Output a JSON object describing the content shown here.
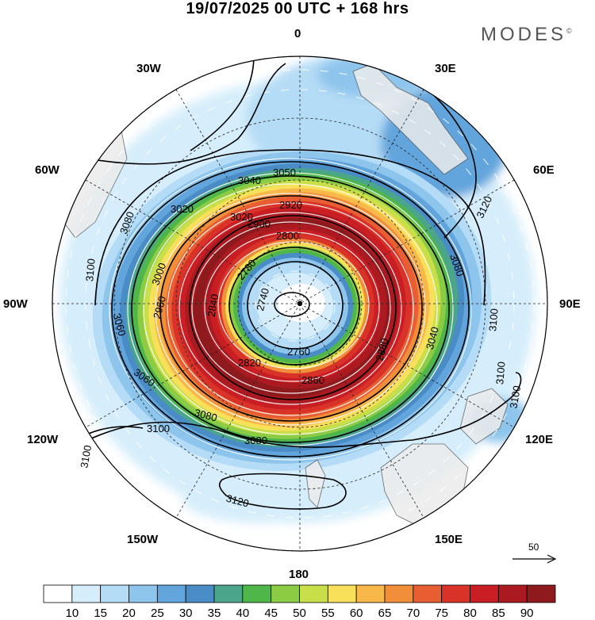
{
  "title": "19/07/2025  00 UTC  + 168 hrs",
  "brand": {
    "name": "MODES",
    "mark": "©"
  },
  "longitude_labels": {
    "n": "0",
    "ne": "30E",
    "nw": "30W",
    "e60": "60E",
    "w60": "60W",
    "e90": "90E",
    "w90": "90W",
    "e120": "120E",
    "w120": "120W",
    "e150": "150E",
    "w150": "150W",
    "s": "180"
  },
  "contour_labels": [
    "3050",
    "3040",
    "3020",
    "2920",
    "3020",
    "2900",
    "2800",
    "2780",
    "2740",
    "2760",
    "2820",
    "2840",
    "2860",
    "2880",
    "2960",
    "3000",
    "3040",
    "3060",
    "3080",
    "3100",
    "3120",
    "3100",
    "3100",
    "3080",
    "3060",
    "3080",
    "3080",
    "3100",
    "3120",
    "3100",
    "3100"
  ],
  "scale_vector": {
    "value": "50"
  },
  "colorbar": {
    "colors": [
      "#ffffff",
      "#d6eefb",
      "#b5dcf6",
      "#8ec5ec",
      "#62a4dc",
      "#4a8dc6",
      "#4aa58a",
      "#4fb74a",
      "#8ccc44",
      "#c9df4a",
      "#f9e05a",
      "#f8b84a",
      "#f08e3a",
      "#e85e32",
      "#d93228",
      "#c81e24",
      "#aa1a20",
      "#8e1a1e"
    ],
    "labels": [
      "10",
      "15",
      "20",
      "25",
      "30",
      "35",
      "40",
      "45",
      "50",
      "55",
      "60",
      "65",
      "70",
      "75",
      "80",
      "85",
      "90"
    ]
  }
}
